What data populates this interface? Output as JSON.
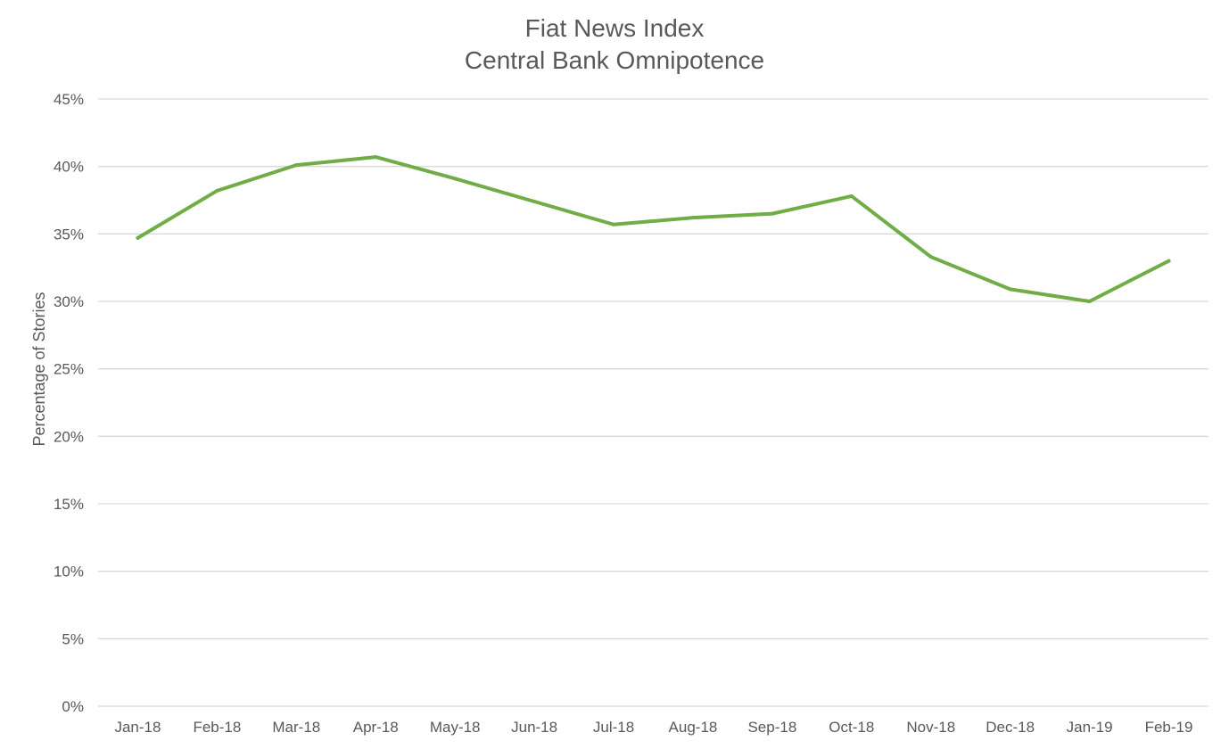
{
  "chart_data": {
    "type": "line",
    "title": "Fiat News Index",
    "subtitle": "Central Bank Omnipotence",
    "xlabel": "",
    "ylabel": "Percentage of Stories",
    "categories": [
      "Jan-18",
      "Feb-18",
      "Mar-18",
      "Apr-18",
      "May-18",
      "Jun-18",
      "Jul-18",
      "Aug-18",
      "Sep-18",
      "Oct-18",
      "Nov-18",
      "Dec-18",
      "Jan-19",
      "Feb-19"
    ],
    "series": [
      {
        "color": "#70ad47",
        "values": [
          34.7,
          38.2,
          40.1,
          40.7,
          39.1,
          37.4,
          35.7,
          36.2,
          36.5,
          37.8,
          33.3,
          30.9,
          30.0,
          33.0
        ]
      }
    ],
    "ylim": [
      0,
      45
    ],
    "yticks": [
      "0%",
      "5%",
      "10%",
      "15%",
      "20%",
      "25%",
      "30%",
      "35%",
      "40%",
      "45%"
    ],
    "ytick_values": [
      0,
      5,
      10,
      15,
      20,
      25,
      30,
      35,
      40,
      45
    ],
    "grid": true,
    "legend": "none",
    "colors": {
      "line": "#70ad47",
      "grid": "#d9d9d9",
      "text": "#595959"
    }
  }
}
